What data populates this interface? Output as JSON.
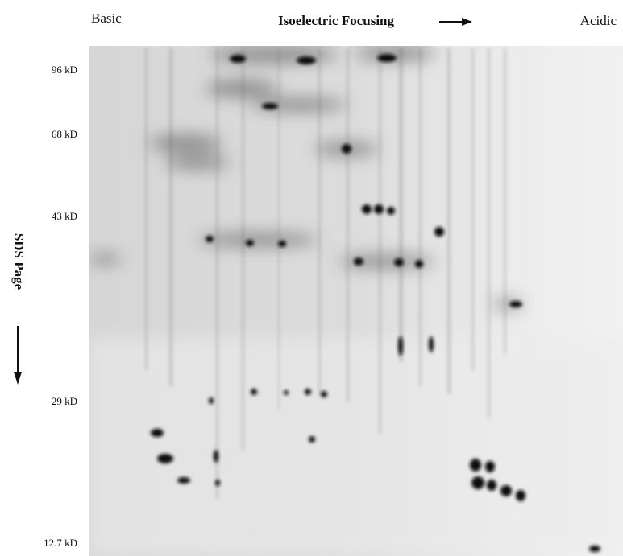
{
  "header": {
    "left": "Basic",
    "title": "Isoelectric Focusing",
    "right": "Acidic"
  },
  "side": {
    "title": "SDS Page"
  },
  "markers": [
    "96 kD",
    "68 kD",
    "43 kD",
    "29 kD",
    "12.7 kD"
  ]
}
